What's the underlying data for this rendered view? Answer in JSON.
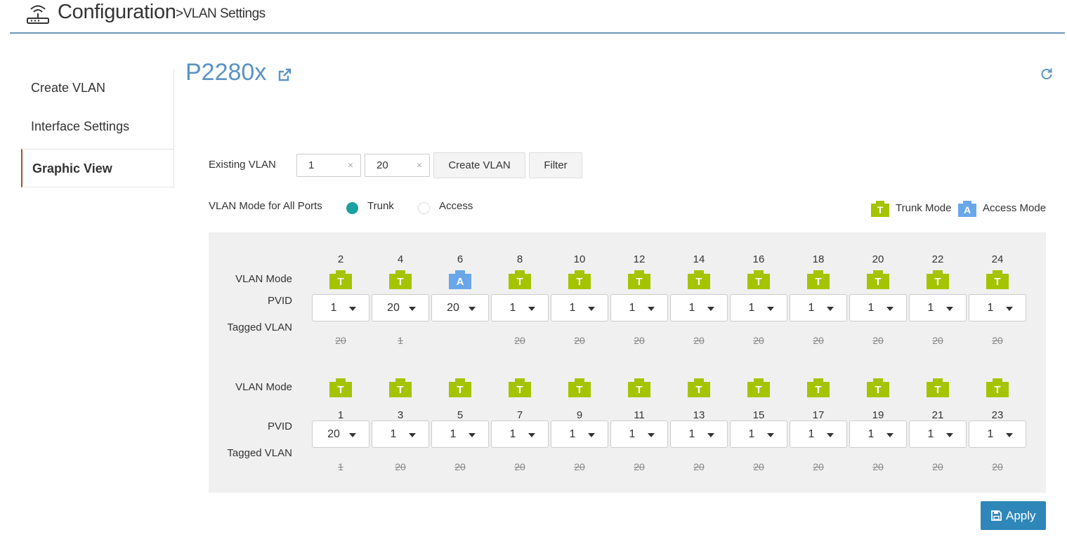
{
  "header": {
    "title": "Configuration",
    "subtitle": ">VLAN Settings",
    "icon": "router-icon"
  },
  "sidebar": {
    "items": [
      {
        "label": "Create VLAN",
        "active": false
      },
      {
        "label": "Interface Settings",
        "active": false
      },
      {
        "label": "Graphic View",
        "active": true
      }
    ]
  },
  "device": {
    "name": "P2280x"
  },
  "filter": {
    "label": "Existing VLAN",
    "tags": [
      "1",
      "20"
    ],
    "clear_symbol": "×",
    "create_label": "Create VLAN",
    "filter_label": "Filter"
  },
  "mode_all": {
    "label": "VLAN Mode for All Ports",
    "options": [
      "Trunk",
      "Access"
    ],
    "selected": "Trunk"
  },
  "legend": {
    "trunk_letter": "T",
    "trunk_label": "Trunk Mode",
    "trunk_color": "#a4c400",
    "access_letter": "A",
    "access_label": "Access Mode",
    "access_color": "#6aa6ea"
  },
  "row_labels": {
    "mode": "VLAN Mode",
    "pvid": "PVID",
    "tagged": "Tagged VLAN"
  },
  "top_ports": [
    {
      "num": "2",
      "mode": "T",
      "pvid": "1",
      "tagged": "20"
    },
    {
      "num": "4",
      "mode": "T",
      "pvid": "20",
      "tagged": "1"
    },
    {
      "num": "6",
      "mode": "A",
      "pvid": "20",
      "tagged": ""
    },
    {
      "num": "8",
      "mode": "T",
      "pvid": "1",
      "tagged": "20"
    },
    {
      "num": "10",
      "mode": "T",
      "pvid": "1",
      "tagged": "20"
    },
    {
      "num": "12",
      "mode": "T",
      "pvid": "1",
      "tagged": "20"
    },
    {
      "num": "14",
      "mode": "T",
      "pvid": "1",
      "tagged": "20"
    },
    {
      "num": "16",
      "mode": "T",
      "pvid": "1",
      "tagged": "20"
    },
    {
      "num": "18",
      "mode": "T",
      "pvid": "1",
      "tagged": "20"
    },
    {
      "num": "20",
      "mode": "T",
      "pvid": "1",
      "tagged": "20"
    },
    {
      "num": "22",
      "mode": "T",
      "pvid": "1",
      "tagged": "20"
    },
    {
      "num": "24",
      "mode": "T",
      "pvid": "1",
      "tagged": "20"
    }
  ],
  "bottom_ports": [
    {
      "num": "1",
      "mode": "T",
      "pvid": "20",
      "tagged": "1"
    },
    {
      "num": "3",
      "mode": "T",
      "pvid": "1",
      "tagged": "20"
    },
    {
      "num": "5",
      "mode": "T",
      "pvid": "1",
      "tagged": "20"
    },
    {
      "num": "7",
      "mode": "T",
      "pvid": "1",
      "tagged": "20"
    },
    {
      "num": "9",
      "mode": "T",
      "pvid": "1",
      "tagged": "20"
    },
    {
      "num": "11",
      "mode": "T",
      "pvid": "1",
      "tagged": "20"
    },
    {
      "num": "13",
      "mode": "T",
      "pvid": "1",
      "tagged": "20"
    },
    {
      "num": "15",
      "mode": "T",
      "pvid": "1",
      "tagged": "20"
    },
    {
      "num": "17",
      "mode": "T",
      "pvid": "1",
      "tagged": "20"
    },
    {
      "num": "19",
      "mode": "T",
      "pvid": "1",
      "tagged": "20"
    },
    {
      "num": "21",
      "mode": "T",
      "pvid": "1",
      "tagged": "20"
    },
    {
      "num": "23",
      "mode": "T",
      "pvid": "1",
      "tagged": "20"
    }
  ],
  "apply": {
    "label": "Apply",
    "icon": "save-icon"
  }
}
